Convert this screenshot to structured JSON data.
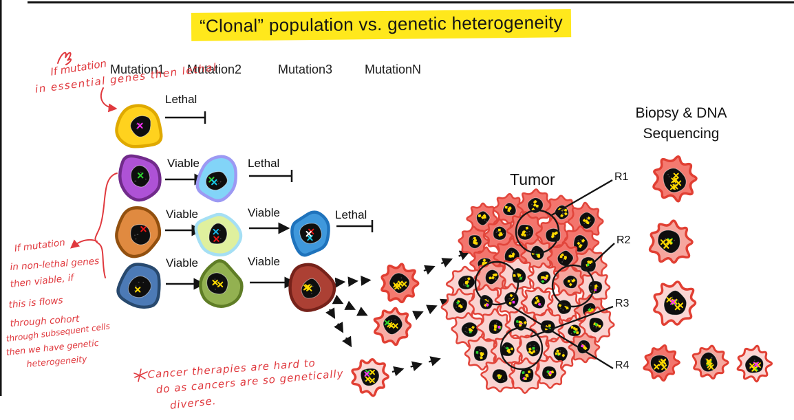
{
  "title": "“Clonal” population vs. genetic heterogeneity",
  "headers": {
    "mutation1": "Mutation1",
    "mutation2": "Mutation2",
    "mutation3": "Mutation3",
    "mutationN": "MutationN"
  },
  "labels": {
    "lethal": "Lethal",
    "viable": "Viable",
    "tumor": "Tumor",
    "biopsy_line1": "Biopsy & DNA",
    "biopsy_line2": "Sequencing",
    "r1": "R1",
    "r2": "R2",
    "r3": "R3",
    "r4": "R4"
  },
  "handwritten": {
    "top_note": [
      "If mutation",
      "in essential genes then lethal"
    ],
    "side_note": [
      "If mutation",
      "in non-lethal genes",
      "then viable, if",
      "this is flows",
      "through cohort",
      "through subsequent cells",
      "then we have genetic",
      "heterogeneity"
    ],
    "bottom_note": [
      "Cancer therapies are hard to",
      "do as cancers are so genetically",
      "diverse."
    ]
  },
  "colors": {
    "highlight": "#FFE81C",
    "ink_red": "#E0393E",
    "line_black": "#141414",
    "border_black": "#111111"
  },
  "tumor": {
    "dark": "#F3756D",
    "mid": "#F6A49C",
    "light": "#FAD3D1",
    "stroke": "#E2463C",
    "dot_yellow": "#FFD900",
    "dot_green": "#2FD32F",
    "dot_magenta": "#F531F5"
  },
  "cells": {
    "yellow": {
      "fill": "#FFD21E",
      "stroke": "#DFA900",
      "dots": [
        "#F531F5"
      ]
    },
    "purple": {
      "fill": "#AE52D6",
      "stroke": "#712B8B",
      "dots": [
        "#2FD32F"
      ]
    },
    "cyan": {
      "fill": "#82D4F8",
      "stroke": "#9C99F3",
      "dots": [
        "#2FD32F",
        "#19C8E8"
      ]
    },
    "orange": {
      "fill": "#E08A40",
      "stroke": "#92500F",
      "dots": [
        "#EA1515"
      ]
    },
    "palegreen": {
      "fill": "#DFF09E",
      "stroke": "#A5DFF4",
      "dots": [
        "#19B6E8",
        "#EA1515"
      ]
    },
    "blue3": {
      "fill": "#3F98DC",
      "stroke": "#1F73BC",
      "dots": [
        "#19C8E8",
        "#EA1515",
        "#FFFFFF"
      ]
    },
    "blue4": {
      "fill": "#4C7AB6",
      "stroke": "#28496E",
      "dots": [
        "#FFD900"
      ]
    },
    "green": {
      "fill": "#93B151",
      "stroke": "#5F7D26",
      "dots": [
        "#FFD900",
        "#FFD900"
      ]
    },
    "brown": {
      "fill": "#AC4034",
      "stroke": "#76221A",
      "dots": [
        "#FFD900",
        "#FFD900",
        "#FFD900"
      ]
    },
    "transitA": {
      "fill": "#F47A70",
      "stroke": "#E13F33",
      "dots": [
        "#FFD900",
        "#FFD900",
        "#FFD900",
        "#FFD900",
        "#FFD900"
      ]
    },
    "transitB": {
      "fill": "#F8ADA5",
      "stroke": "#E13F33",
      "dots": [
        "#FFD900",
        "#FFD900",
        "#FFD900",
        "#2FD32F"
      ]
    },
    "transitC": {
      "fill": "#FBD6D4",
      "stroke": "#E13F33",
      "dots": [
        "#FFD900",
        "#FFD900",
        "#FFD900",
        "#2FD32F",
        "#F531F5"
      ]
    },
    "biopsyR1": {
      "fill": "#F47A70",
      "stroke": "#E13F33",
      "dots": [
        "#FFD900",
        "#FFD900",
        "#FFD900",
        "#FFD900",
        "#FFD900",
        "#FFD900"
      ]
    },
    "biopsyR2": {
      "fill": "#F6A69E",
      "stroke": "#E13F33",
      "dots": [
        "#2FD32F",
        "#FFD900",
        "#FFD900",
        "#FFD900",
        "#FFD900",
        "#FFD900"
      ]
    },
    "biopsyR3": {
      "fill": "#FBD6D4",
      "stroke": "#E13F33",
      "dots": [
        "#2FD32F",
        "#FFD900",
        "#FFD900",
        "#FFD900",
        "#F531F5",
        "#FFD900"
      ]
    },
    "biopsyR4a": {
      "fill": "#F3756D",
      "stroke": "#E13F33",
      "dots": [
        "#FFD900",
        "#FFD900",
        "#FFD900",
        "#FFD900",
        "#FFD900"
      ]
    },
    "biopsyR4b": {
      "fill": "#F6A89F",
      "stroke": "#E13F33",
      "dots": [
        "#2FD32F",
        "#FFD900",
        "#FFD900",
        "#FFD900",
        "#FFD900"
      ]
    },
    "biopsyR4c": {
      "fill": "#FBD6D4",
      "stroke": "#E13F33",
      "dots": [
        "#2FD32F",
        "#FFD900",
        "#FFD900",
        "#F531F5",
        "#FFD900"
      ]
    }
  }
}
